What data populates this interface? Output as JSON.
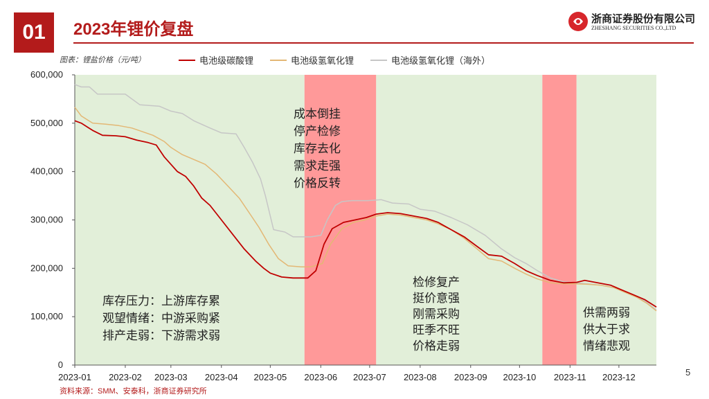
{
  "slide": {
    "number": "01",
    "title": "2023年锂价复盘",
    "page_number": "5",
    "source": "资料来源：SMM、安泰科，浙商证券研究所",
    "note": "图表：锂盐价格（元/吨）"
  },
  "logo": {
    "name_cn": "浙商证券股份有限公司",
    "name_en": "ZHESHANG SECURITIES CO.,LTD",
    "brand_color": "#d7262b"
  },
  "chart_data": {
    "type": "line",
    "x_tick_labels": [
      "2023-01",
      "2023-02",
      "2023-03",
      "2023-04",
      "2023-05",
      "2023-06",
      "2023-07",
      "2023-08",
      "2023-09",
      "2023-10",
      "2023-11",
      "2023-12"
    ],
    "y_tick_labels": [
      "0",
      "100,000",
      "200,000",
      "300,000",
      "400,000",
      "500,000",
      "600,000"
    ],
    "ylim": [
      0,
      600000
    ],
    "xlim": [
      "2023-01-01",
      "2023-12-24"
    ],
    "grid": false,
    "legend_position": "top",
    "series": [
      {
        "name": "电池级碳酸锂",
        "color": "#c00000",
        "points": [
          [
            "2023-01-01",
            505000
          ],
          [
            "2023-01-05",
            500000
          ],
          [
            "2023-01-12",
            485000
          ],
          [
            "2023-01-18",
            475000
          ],
          [
            "2023-01-26",
            474000
          ],
          [
            "2023-02-01",
            472000
          ],
          [
            "2023-02-08",
            465000
          ],
          [
            "2023-02-15",
            460000
          ],
          [
            "2023-02-20",
            455000
          ],
          [
            "2023-02-25",
            430000
          ],
          [
            "2023-03-01",
            415000
          ],
          [
            "2023-03-05",
            400000
          ],
          [
            "2023-03-10",
            390000
          ],
          [
            "2023-03-15",
            370000
          ],
          [
            "2023-03-20",
            345000
          ],
          [
            "2023-03-25",
            330000
          ],
          [
            "2023-04-01",
            300000
          ],
          [
            "2023-04-08",
            270000
          ],
          [
            "2023-04-15",
            240000
          ],
          [
            "2023-04-22",
            215000
          ],
          [
            "2023-04-27",
            200000
          ],
          [
            "2023-05-01",
            190000
          ],
          [
            "2023-05-08",
            182000
          ],
          [
            "2023-05-15",
            180000
          ],
          [
            "2023-05-20",
            180000
          ],
          [
            "2023-05-24",
            180000
          ],
          [
            "2023-05-29",
            195000
          ],
          [
            "2023-06-03",
            250000
          ],
          [
            "2023-06-08",
            282000
          ],
          [
            "2023-06-15",
            295000
          ],
          [
            "2023-06-22",
            300000
          ],
          [
            "2023-06-29",
            305000
          ],
          [
            "2023-07-05",
            312000
          ],
          [
            "2023-07-12",
            315000
          ],
          [
            "2023-07-20",
            313000
          ],
          [
            "2023-07-28",
            308000
          ],
          [
            "2023-08-05",
            303000
          ],
          [
            "2023-08-12",
            295000
          ],
          [
            "2023-08-20",
            280000
          ],
          [
            "2023-08-28",
            265000
          ],
          [
            "2023-09-05",
            245000
          ],
          [
            "2023-09-12",
            228000
          ],
          [
            "2023-09-20",
            225000
          ],
          [
            "2023-09-28",
            210000
          ],
          [
            "2023-10-05",
            195000
          ],
          [
            "2023-10-12",
            185000
          ],
          [
            "2023-10-20",
            175000
          ],
          [
            "2023-10-28",
            170000
          ],
          [
            "2023-11-05",
            171000
          ],
          [
            "2023-11-10",
            175000
          ],
          [
            "2023-11-18",
            170000
          ],
          [
            "2023-11-26",
            165000
          ],
          [
            "2023-12-03",
            155000
          ],
          [
            "2023-12-10",
            145000
          ],
          [
            "2023-12-17",
            135000
          ],
          [
            "2023-12-24",
            120000
          ]
        ]
      },
      {
        "name": "电池级氢氧化锂",
        "color": "#e3b774",
        "points": [
          [
            "2023-01-01",
            533000
          ],
          [
            "2023-01-05",
            515000
          ],
          [
            "2023-01-12",
            500000
          ],
          [
            "2023-01-20",
            498000
          ],
          [
            "2023-01-28",
            495000
          ],
          [
            "2023-02-05",
            490000
          ],
          [
            "2023-02-12",
            482000
          ],
          [
            "2023-02-18",
            475000
          ],
          [
            "2023-02-25",
            462000
          ],
          [
            "2023-03-01",
            450000
          ],
          [
            "2023-03-08",
            435000
          ],
          [
            "2023-03-15",
            425000
          ],
          [
            "2023-03-22",
            415000
          ],
          [
            "2023-03-29",
            395000
          ],
          [
            "2023-04-05",
            370000
          ],
          [
            "2023-04-12",
            345000
          ],
          [
            "2023-04-18",
            315000
          ],
          [
            "2023-04-24",
            285000
          ],
          [
            "2023-04-30",
            250000
          ],
          [
            "2023-05-06",
            220000
          ],
          [
            "2023-05-12",
            205000
          ],
          [
            "2023-05-20",
            203000
          ],
          [
            "2023-05-26",
            203000
          ],
          [
            "2023-06-02",
            210000
          ],
          [
            "2023-06-07",
            250000
          ],
          [
            "2023-06-14",
            282000
          ],
          [
            "2023-06-21",
            295000
          ],
          [
            "2023-06-28",
            300000
          ],
          [
            "2023-07-05",
            308000
          ],
          [
            "2023-07-12",
            312000
          ],
          [
            "2023-07-20",
            310000
          ],
          [
            "2023-07-28",
            305000
          ],
          [
            "2023-08-05",
            300000
          ],
          [
            "2023-08-12",
            292000
          ],
          [
            "2023-08-20",
            280000
          ],
          [
            "2023-08-28",
            262000
          ],
          [
            "2023-09-05",
            240000
          ],
          [
            "2023-09-12",
            220000
          ],
          [
            "2023-09-20",
            215000
          ],
          [
            "2023-09-28",
            200000
          ],
          [
            "2023-10-05",
            188000
          ],
          [
            "2023-10-12",
            178000
          ],
          [
            "2023-10-20",
            170000
          ],
          [
            "2023-10-28",
            168000
          ],
          [
            "2023-11-05",
            168000
          ],
          [
            "2023-11-12",
            167000
          ],
          [
            "2023-11-20",
            165000
          ],
          [
            "2023-11-28",
            160000
          ],
          [
            "2023-12-05",
            150000
          ],
          [
            "2023-12-12",
            140000
          ],
          [
            "2023-12-18",
            128000
          ],
          [
            "2023-12-24",
            112000
          ]
        ]
      },
      {
        "name": "电池级氢氧化锂（海外）",
        "color": "#c6c6c6",
        "points": [
          [
            "2023-01-01",
            580000
          ],
          [
            "2023-01-05",
            575000
          ],
          [
            "2023-01-10",
            575000
          ],
          [
            "2023-01-15",
            560000
          ],
          [
            "2023-02-01",
            560000
          ],
          [
            "2023-02-10",
            538000
          ],
          [
            "2023-02-22",
            535000
          ],
          [
            "2023-03-01",
            525000
          ],
          [
            "2023-03-08",
            520000
          ],
          [
            "2023-03-15",
            505000
          ],
          [
            "2023-03-25",
            490000
          ],
          [
            "2023-04-01",
            480000
          ],
          [
            "2023-04-10",
            478000
          ],
          [
            "2023-04-15",
            450000
          ],
          [
            "2023-04-20",
            420000
          ],
          [
            "2023-04-25",
            385000
          ],
          [
            "2023-04-28",
            350000
          ],
          [
            "2023-05-03",
            280000
          ],
          [
            "2023-05-10",
            275000
          ],
          [
            "2023-05-15",
            265000
          ],
          [
            "2023-05-20",
            265000
          ],
          [
            "2023-05-26",
            265000
          ],
          [
            "2023-06-01",
            268000
          ],
          [
            "2023-06-05",
            300000
          ],
          [
            "2023-06-10",
            330000
          ],
          [
            "2023-06-14",
            338000
          ],
          [
            "2023-06-20",
            340000
          ],
          [
            "2023-06-30",
            340000
          ],
          [
            "2023-07-08",
            342000
          ],
          [
            "2023-07-15",
            335000
          ],
          [
            "2023-07-25",
            333000
          ],
          [
            "2023-08-01",
            322000
          ],
          [
            "2023-08-10",
            318000
          ],
          [
            "2023-08-20",
            305000
          ],
          [
            "2023-08-30",
            290000
          ],
          [
            "2023-09-10",
            268000
          ],
          [
            "2023-09-20",
            240000
          ],
          [
            "2023-09-28",
            222000
          ],
          [
            "2023-10-05",
            210000
          ],
          [
            "2023-10-12",
            195000
          ],
          [
            "2023-10-20",
            180000
          ],
          [
            "2023-10-28",
            172000
          ],
          [
            "2023-11-05",
            170000
          ],
          [
            "2023-11-12",
            168000
          ],
          [
            "2023-11-20",
            165000
          ],
          [
            "2023-11-28",
            160000
          ],
          [
            "2023-12-05",
            150000
          ],
          [
            "2023-12-12",
            142000
          ],
          [
            "2023-12-18",
            130000
          ],
          [
            "2023-12-24",
            114000
          ]
        ]
      }
    ],
    "phases": [
      {
        "start": "2023-01-01",
        "end": "2023-05-22",
        "color": "#e2efd9"
      },
      {
        "start": "2023-05-22",
        "end": "2023-07-05",
        "color": "#ff9999"
      },
      {
        "start": "2023-07-05",
        "end": "2023-10-15",
        "color": "#e2efd9"
      },
      {
        "start": "2023-10-15",
        "end": "2023-11-05",
        "color": "#ff9999"
      },
      {
        "start": "2023-11-05",
        "end": "2023-12-24",
        "color": "#e2efd9"
      }
    ],
    "annotations": [
      {
        "lines": [
          "成本倒挂",
          "停产检修",
          "库存去化",
          "需求走强",
          "价格反转"
        ]
      },
      {
        "lines": [
          "库存压力：上游库存累",
          "观望情绪：中游采购紧",
          "排产走弱：下游需求弱"
        ]
      },
      {
        "lines": [
          "检修复产",
          "挺价意强",
          "刚需采购",
          "旺季不旺",
          "价格走弱"
        ]
      },
      {
        "lines": [
          "供需两弱",
          "供大于求",
          "情绪悲观"
        ]
      }
    ]
  }
}
